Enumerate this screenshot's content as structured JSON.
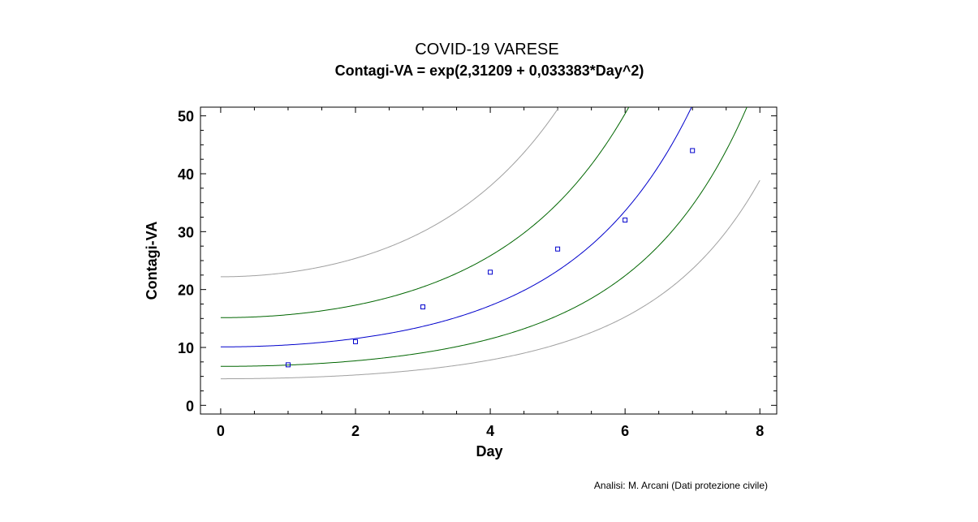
{
  "chart_data": {
    "type": "scatter",
    "title": "COVID-19 VARESE",
    "subtitle": "Contagi-VA = exp(2,31209 + 0,033383*Day^2)",
    "xlabel": "Day",
    "ylabel": "Contagi-VA",
    "xlim": [
      -0.3,
      8.25
    ],
    "ylim": [
      -1.5,
      51.5
    ],
    "x_ticks": [
      0,
      2,
      4,
      6,
      8
    ],
    "y_ticks": [
      0,
      10,
      20,
      30,
      40,
      50
    ],
    "grid": false,
    "model": {
      "intercept": 2.31209,
      "coef": 0.033383,
      "form": "exp(a + b*Day^2)"
    },
    "points": {
      "x": [
        1,
        2,
        3,
        4,
        5,
        6,
        7
      ],
      "y": [
        7,
        11,
        17,
        23,
        27,
        32,
        44
      ]
    },
    "bands": {
      "confidence_inner_factor": 1.5,
      "prediction_outer_factor": 2.2
    },
    "colors": {
      "fit": "#0000cc",
      "confidence": "#006600",
      "prediction": "#a0a0a0",
      "points": "#0000cc",
      "frame": "#000000"
    },
    "footnote": "Analisi: M. Arcani (Dati protezione civile)"
  }
}
